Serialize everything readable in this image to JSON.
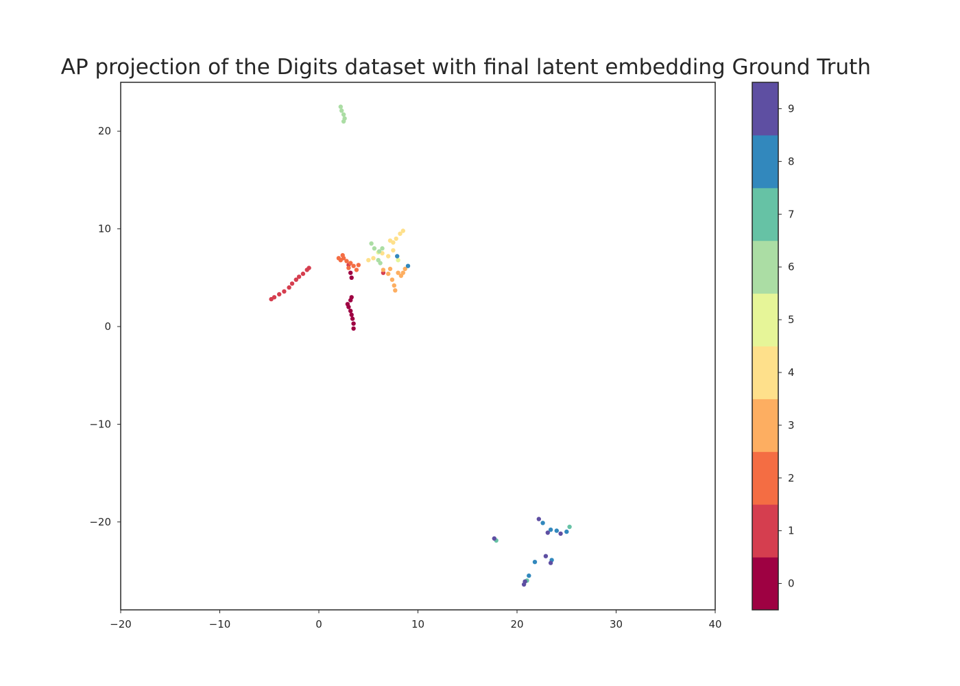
{
  "chart_data": {
    "type": "scatter",
    "title": "AP projection of the Digits dataset with final latent embedding Ground Truth",
    "xlabel": "",
    "ylabel": "",
    "xlim": [
      -20,
      40
    ],
    "ylim": [
      -29,
      25
    ],
    "xticks": [
      -20,
      -10,
      0,
      10,
      20,
      30,
      40
    ],
    "xtick_labels": [
      "−20",
      "−10",
      "0",
      "10",
      "20",
      "30",
      "40"
    ],
    "yticks": [
      -20,
      -10,
      0,
      10,
      20
    ],
    "ytick_labels": [
      "−20",
      "−10",
      "0",
      "10",
      "20"
    ],
    "grid": false,
    "colorbar": {
      "labels": [
        "0",
        "1",
        "2",
        "3",
        "4",
        "5",
        "6",
        "7",
        "8",
        "9"
      ],
      "colors": [
        "#9e0142",
        "#d53e4f",
        "#f46d43",
        "#fdae61",
        "#fee08b",
        "#e6f598",
        "#abdda4",
        "#66c2a5",
        "#3288bd",
        "#5e4fa2"
      ]
    },
    "series": [
      {
        "label": 0,
        "points": [
          [
            3.5,
            -0.2
          ],
          [
            3.5,
            0.3
          ],
          [
            3.4,
            0.8
          ],
          [
            3.3,
            1.2
          ],
          [
            3.2,
            1.6
          ],
          [
            3.0,
            2.0
          ],
          [
            2.9,
            2.3
          ],
          [
            3.2,
            2.7
          ],
          [
            3.3,
            3.0
          ],
          [
            3.3,
            5.0
          ],
          [
            3.2,
            5.5
          ]
        ]
      },
      {
        "label": 1,
        "points": [
          [
            -4.8,
            2.8
          ],
          [
            -4.5,
            3.0
          ],
          [
            -4.0,
            3.3
          ],
          [
            -3.5,
            3.6
          ],
          [
            -3.0,
            4.0
          ],
          [
            -2.7,
            4.4
          ],
          [
            -2.3,
            4.8
          ],
          [
            -2.0,
            5.1
          ],
          [
            -1.6,
            5.4
          ],
          [
            -1.2,
            5.8
          ],
          [
            -1.0,
            6.0
          ],
          [
            3.0,
            6.3
          ],
          [
            6.5,
            5.5
          ]
        ]
      },
      {
        "label": 2,
        "points": [
          [
            2.2,
            6.8
          ],
          [
            2.5,
            7.0
          ],
          [
            2.8,
            6.7
          ],
          [
            3.2,
            6.5
          ],
          [
            3.5,
            6.2
          ],
          [
            3.8,
            5.8
          ],
          [
            4.0,
            6.3
          ],
          [
            2.4,
            7.3
          ],
          [
            3.0,
            6.0
          ],
          [
            2.0,
            7.0
          ]
        ]
      },
      {
        "label": 3,
        "points": [
          [
            6.5,
            5.8
          ],
          [
            7.0,
            5.4
          ],
          [
            7.4,
            4.8
          ],
          [
            7.6,
            4.2
          ],
          [
            7.7,
            3.7
          ],
          [
            8.0,
            5.5
          ],
          [
            8.3,
            5.2
          ],
          [
            8.7,
            5.9
          ],
          [
            7.2,
            5.9
          ],
          [
            8.5,
            5.5
          ]
        ]
      },
      {
        "label": 4,
        "points": [
          [
            7.5,
            8.6
          ],
          [
            7.8,
            9.0
          ],
          [
            8.2,
            9.5
          ],
          [
            8.5,
            9.8
          ],
          [
            7.2,
            8.8
          ],
          [
            6.4,
            7.5
          ],
          [
            7.0,
            7.2
          ],
          [
            5.5,
            7.0
          ],
          [
            5.0,
            6.8
          ],
          [
            7.5,
            7.8
          ]
        ]
      },
      {
        "label": 5,
        "points": [
          [
            6.0,
            7.6
          ],
          [
            8.0,
            6.8
          ]
        ]
      },
      {
        "label": 6,
        "points": [
          [
            2.2,
            22.5
          ],
          [
            2.3,
            22.1
          ],
          [
            2.5,
            21.7
          ],
          [
            2.6,
            21.3
          ],
          [
            2.5,
            21.0
          ],
          [
            5.3,
            8.5
          ],
          [
            5.6,
            8.0
          ],
          [
            6.1,
            7.7
          ],
          [
            6.4,
            8.0
          ],
          [
            6.0,
            6.8
          ],
          [
            6.2,
            6.5
          ]
        ]
      },
      {
        "label": 7,
        "points": [
          [
            25.3,
            -20.5
          ],
          [
            17.9,
            -21.9
          ],
          [
            21.0,
            -26.0
          ]
        ]
      },
      {
        "label": 8,
        "points": [
          [
            7.9,
            7.2
          ],
          [
            9.0,
            6.2
          ],
          [
            22.6,
            -20.1
          ],
          [
            23.4,
            -20.8
          ],
          [
            24.0,
            -20.9
          ],
          [
            23.5,
            -23.9
          ],
          [
            21.2,
            -25.5
          ],
          [
            21.8,
            -24.1
          ],
          [
            25.0,
            -21.0
          ]
        ]
      },
      {
        "label": 9,
        "points": [
          [
            22.2,
            -19.7
          ],
          [
            23.1,
            -21.1
          ],
          [
            24.4,
            -21.2
          ],
          [
            17.7,
            -21.7
          ],
          [
            23.4,
            -24.2
          ],
          [
            20.8,
            -26.1
          ],
          [
            20.7,
            -26.4
          ],
          [
            22.9,
            -23.5
          ]
        ]
      }
    ]
  }
}
